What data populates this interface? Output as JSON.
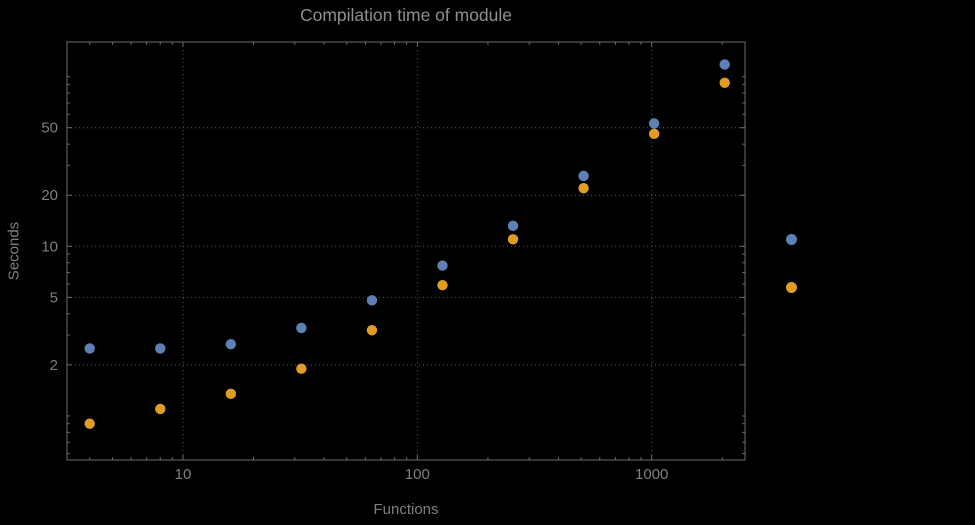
{
  "colors": {
    "background": "#000000",
    "frame": "#6e6e6e",
    "grid": "#5a5a5a",
    "title_text": "#8f8f8f",
    "axis_text": "#7f7f7f"
  },
  "chart_data": {
    "type": "scatter",
    "title": "Compilation time of module",
    "xlabel": "Functions",
    "ylabel": "Seconds",
    "x_scale": "log",
    "y_scale": "log",
    "xlim": [
      3.2,
      2500
    ],
    "ylim": [
      0.55,
      160
    ],
    "x_ticks": [
      10,
      100,
      1000
    ],
    "y_ticks": [
      2,
      5,
      10,
      20,
      50
    ],
    "grid": "dotted",
    "legend_position": "right-outside",
    "legend_labels_visible": false,
    "x": [
      4,
      8,
      16,
      32,
      64,
      128,
      256,
      512,
      1024,
      2048
    ],
    "series": [
      {
        "name": "blue",
        "color": "#5e81b5",
        "values": [
          2.5,
          2.5,
          2.65,
          3.3,
          4.8,
          7.7,
          13.2,
          26,
          53,
          118
        ]
      },
      {
        "name": "orange",
        "color": "#e19c24",
        "values": [
          0.9,
          1.1,
          1.35,
          1.9,
          3.2,
          5.9,
          11,
          22,
          46,
          92
        ]
      }
    ]
  }
}
